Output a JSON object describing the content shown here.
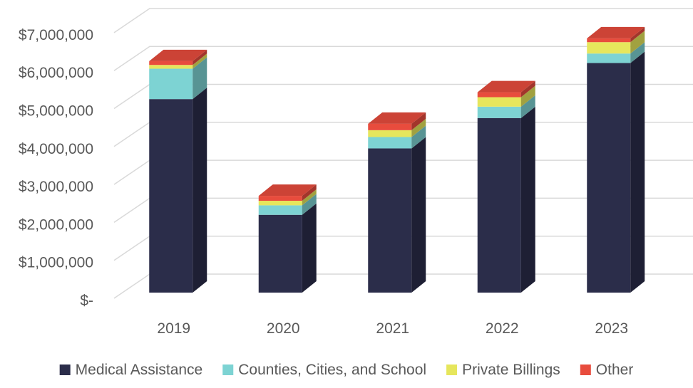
{
  "chart_data": {
    "type": "bar",
    "stacked": true,
    "three_d": true,
    "title": "",
    "xlabel": "",
    "ylabel": "",
    "categories": [
      "2019",
      "2020",
      "2021",
      "2022",
      "2023"
    ],
    "ylim": [
      0,
      7500000
    ],
    "y_ticks": [
      0,
      1000000,
      2000000,
      3000000,
      4000000,
      5000000,
      6000000,
      7000000
    ],
    "y_tick_labels": [
      "$-",
      "$1,000,000",
      "$2,000,000",
      "$3,000,000",
      "$4,000,000",
      "$5,000,000",
      "$6,000,000",
      "$7,000,000"
    ],
    "grid": true,
    "legend_position": "bottom",
    "series": [
      {
        "name": "Medical Assistance",
        "color": "#2b2d4a",
        "values": [
          5100000,
          2050000,
          3800000,
          4600000,
          6050000
        ]
      },
      {
        "name": "Counties, Cities, and School",
        "color": "#7dd3d3",
        "values": [
          800000,
          250000,
          300000,
          300000,
          250000
        ]
      },
      {
        "name": "Private Billings",
        "color": "#e6e65c",
        "values": [
          100000,
          120000,
          180000,
          250000,
          300000
        ]
      },
      {
        "name": "Other",
        "color": "#e84c3d",
        "values": [
          100000,
          130000,
          170000,
          130000,
          100000
        ]
      }
    ]
  }
}
